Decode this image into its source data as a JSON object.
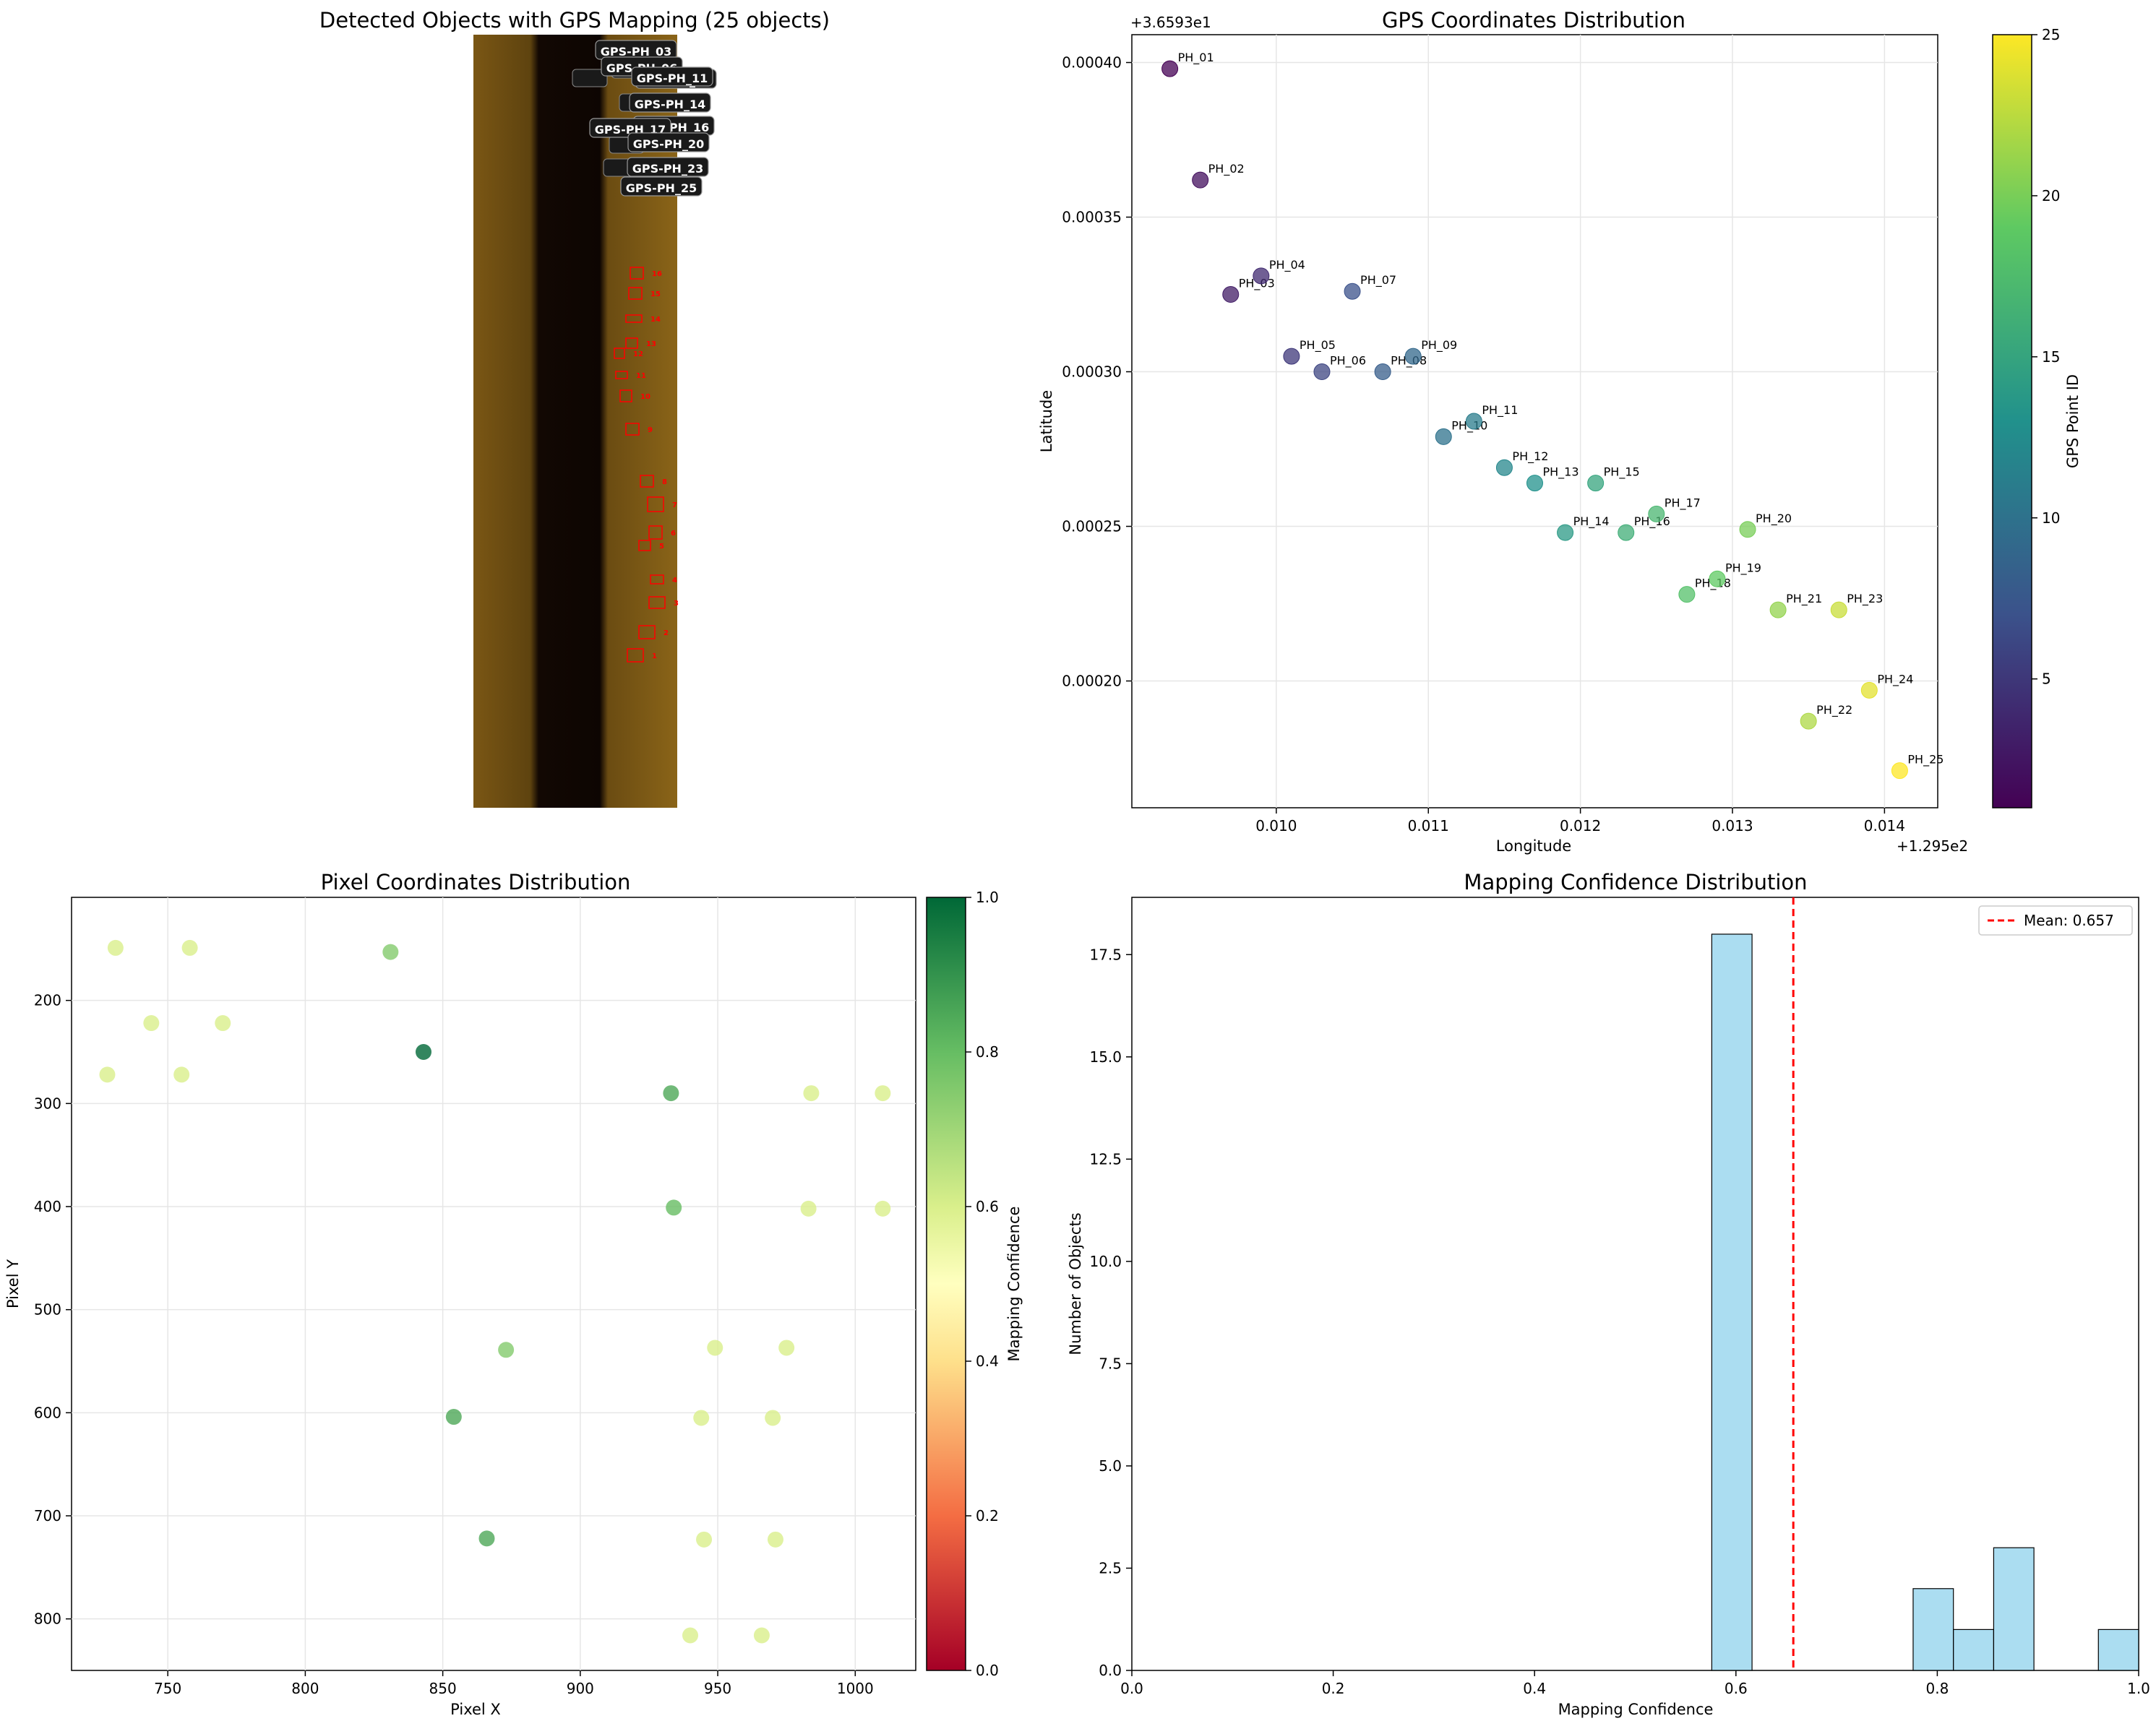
{
  "colors": {
    "sonar_bg": "#6e4e12",
    "sonar_dark": "#0d0502",
    "box": "#ff0000",
    "hist_fill": "#87ceeb",
    "mean_line": "#ff0000",
    "grid": "#e6e6e6"
  },
  "chart_data": [
    {
      "type": "image",
      "title": "Detected Objects with GPS Mapping (25 objects)",
      "annotations": [
        "GPS-PH_03",
        "GPS-PH_06",
        "GPS-PH_10",
        "GPS-PH_11",
        "GPS-PH_14",
        "GPS-PH_16",
        "GPS-PH_17",
        "GPS-PH_20",
        "GPS-PH_23",
        "GPS-PH_25"
      ],
      "box_labels": [
        "1",
        "2",
        "3",
        "4",
        "5",
        "6",
        "7",
        "8",
        "9",
        "10",
        "11",
        "12",
        "13",
        "14",
        "15",
        "16"
      ]
    },
    {
      "type": "scatter",
      "title": "GPS Coordinates Distribution",
      "xlabel": "Longitude",
      "ylabel": "Latitude",
      "x_offset_label": "+1.295e2",
      "y_offset_label": "+3.6593e1",
      "xlim": [
        0.00905,
        0.01435
      ],
      "ylim": [
        0.000159,
        0.000409
      ],
      "xticks": [
        "0.010",
        "0.011",
        "0.012",
        "0.013",
        "0.014"
      ],
      "yticks": [
        "0.00020",
        "0.00025",
        "0.00030",
        "0.00035",
        "0.00040"
      ],
      "colorbar": {
        "label": "GPS Point ID",
        "ticks": [
          "5",
          "10",
          "15",
          "20",
          "25"
        ],
        "range": [
          1,
          25
        ],
        "colormap": "viridis"
      },
      "grid": true,
      "points": [
        {
          "label": "PH_01",
          "x": 0.0093,
          "y": 0.000398
        },
        {
          "label": "PH_02",
          "x": 0.0095,
          "y": 0.000362
        },
        {
          "label": "PH_03",
          "x": 0.0097,
          "y": 0.000325
        },
        {
          "label": "PH_04",
          "x": 0.0099,
          "y": 0.000331
        },
        {
          "label": "PH_05",
          "x": 0.0101,
          "y": 0.000305
        },
        {
          "label": "PH_06",
          "x": 0.0103,
          "y": 0.0003
        },
        {
          "label": "PH_07",
          "x": 0.0105,
          "y": 0.000326
        },
        {
          "label": "PH_08",
          "x": 0.0107,
          "y": 0.0003
        },
        {
          "label": "PH_09",
          "x": 0.0109,
          "y": 0.000305
        },
        {
          "label": "PH_10",
          "x": 0.0111,
          "y": 0.000279
        },
        {
          "label": "PH_11",
          "x": 0.0113,
          "y": 0.000284
        },
        {
          "label": "PH_12",
          "x": 0.0115,
          "y": 0.000269
        },
        {
          "label": "PH_13",
          "x": 0.0117,
          "y": 0.000264
        },
        {
          "label": "PH_14",
          "x": 0.0119,
          "y": 0.000248
        },
        {
          "label": "PH_15",
          "x": 0.0121,
          "y": 0.000264
        },
        {
          "label": "PH_16",
          "x": 0.0123,
          "y": 0.000248
        },
        {
          "label": "PH_17",
          "x": 0.0125,
          "y": 0.000254
        },
        {
          "label": "PH_18",
          "x": 0.0127,
          "y": 0.000228
        },
        {
          "label": "PH_19",
          "x": 0.0129,
          "y": 0.000233
        },
        {
          "label": "PH_20",
          "x": 0.0131,
          "y": 0.000249
        },
        {
          "label": "PH_21",
          "x": 0.0133,
          "y": 0.000223
        },
        {
          "label": "PH_22",
          "x": 0.0135,
          "y": 0.000187
        },
        {
          "label": "PH_23",
          "x": 0.0137,
          "y": 0.000223
        },
        {
          "label": "PH_24",
          "x": 0.0139,
          "y": 0.000197
        },
        {
          "label": "PH_25",
          "x": 0.0141,
          "y": 0.000171
        }
      ]
    },
    {
      "type": "scatter",
      "title": "Pixel Coordinates Distribution",
      "xlabel": "Pixel X",
      "ylabel": "Pixel Y",
      "xlim": [
        715,
        1022
      ],
      "ylim": [
        850,
        100
      ],
      "y_inverted": true,
      "xticks": [
        "750",
        "800",
        "850",
        "900",
        "950",
        "1000"
      ],
      "yticks": [
        "200",
        "300",
        "400",
        "500",
        "600",
        "700",
        "800"
      ],
      "colorbar": {
        "label": "Mapping Confidence",
        "ticks": [
          "0.0",
          "0.2",
          "0.4",
          "0.6",
          "0.8",
          "1.0"
        ],
        "range": [
          0,
          1
        ],
        "colormap": "RdYlGn"
      },
      "grid": true,
      "points": [
        {
          "x": 731,
          "y": 149,
          "c": 0.6
        },
        {
          "x": 758,
          "y": 149,
          "c": 0.6
        },
        {
          "x": 831,
          "y": 153,
          "c": 0.75
        },
        {
          "x": 744,
          "y": 222,
          "c": 0.6
        },
        {
          "x": 770,
          "y": 222,
          "c": 0.6
        },
        {
          "x": 843,
          "y": 250,
          "c": 1.0
        },
        {
          "x": 728,
          "y": 272,
          "c": 0.6
        },
        {
          "x": 755,
          "y": 272,
          "c": 0.6
        },
        {
          "x": 933,
          "y": 290,
          "c": 0.85
        },
        {
          "x": 984,
          "y": 290,
          "c": 0.6
        },
        {
          "x": 1010,
          "y": 290,
          "c": 0.6
        },
        {
          "x": 934,
          "y": 401,
          "c": 0.8
        },
        {
          "x": 983,
          "y": 402,
          "c": 0.6
        },
        {
          "x": 1010,
          "y": 402,
          "c": 0.6
        },
        {
          "x": 873,
          "y": 539,
          "c": 0.75
        },
        {
          "x": 949,
          "y": 537,
          "c": 0.6
        },
        {
          "x": 975,
          "y": 537,
          "c": 0.6
        },
        {
          "x": 854,
          "y": 604,
          "c": 0.85
        },
        {
          "x": 944,
          "y": 605,
          "c": 0.6
        },
        {
          "x": 970,
          "y": 605,
          "c": 0.6
        },
        {
          "x": 866,
          "y": 722,
          "c": 0.85
        },
        {
          "x": 945,
          "y": 723,
          "c": 0.6
        },
        {
          "x": 971,
          "y": 723,
          "c": 0.6
        },
        {
          "x": 940,
          "y": 816,
          "c": 0.6
        },
        {
          "x": 966,
          "y": 816,
          "c": 0.6
        }
      ]
    },
    {
      "type": "bar",
      "subtype": "histogram",
      "title": "Mapping Confidence Distribution",
      "xlabel": "Mapping Confidence",
      "ylabel": "Number of Objects",
      "xlim": [
        0,
        1
      ],
      "ylim": [
        0,
        18.9
      ],
      "xticks": [
        "0.0",
        "0.2",
        "0.4",
        "0.6",
        "0.8",
        "1.0"
      ],
      "yticks": [
        "0.0",
        "2.5",
        "5.0",
        "7.5",
        "10.0",
        "12.5",
        "15.0",
        "17.5"
      ],
      "bin_width": 0.04,
      "bins": [
        {
          "start": 0.576,
          "count": 18
        },
        {
          "start": 0.776,
          "count": 2
        },
        {
          "start": 0.816,
          "count": 1
        },
        {
          "start": 0.856,
          "count": 3
        },
        {
          "start": 0.96,
          "count": 1
        }
      ],
      "mean": 0.657,
      "legend": "Mean: 0.657",
      "legend_position": "top-right"
    }
  ]
}
